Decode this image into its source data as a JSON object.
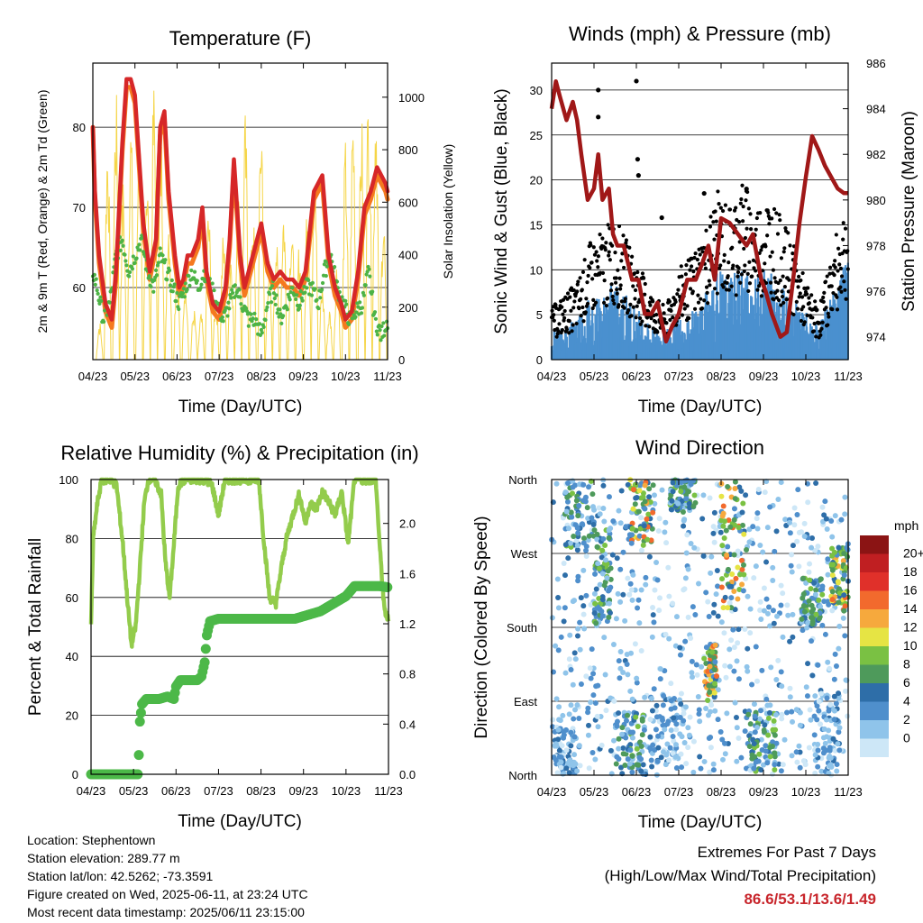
{
  "footer": {
    "location": "Location: Stephentown",
    "elevation": "Station elevation: 289.77 m",
    "latlon": "Station lat/lon: 42.5262; -73.3591",
    "created": "Figure created on Wed, 2025-06-11, at 23:24 UTC",
    "recent": "Most recent data timestamp: 2025/06/11 23:15:00"
  },
  "extremes": {
    "title1": "Extremes For Past 7 Days",
    "title2": "(High/Low/Max Wind/Total Precipitation)",
    "values": "86.6/53.1/13.6/1.49"
  },
  "colors": {
    "temp2m": "#d62728",
    "temp9m": "#f5791f",
    "dewpoint": "#4db346",
    "solar": "#f5d547",
    "gust": "#000000",
    "wind": "#4a90cf",
    "pressure": "#a01818",
    "rh": "#93cc4c",
    "precip": "#4cb848"
  },
  "chart_data": [
    {
      "type": "line",
      "title": "Temperature (F)",
      "xlabel": "Time (Day/UTC)",
      "ylabel": "2m & 9m T (Red, Orange) & 2m Td (Green)",
      "y2label": "Solar Insolation (Yellow)",
      "x_ticks": [
        "04/23",
        "05/23",
        "06/23",
        "07/23",
        "08/23",
        "09/23",
        "10/23",
        "11/23"
      ],
      "xlim": [
        0,
        7
      ],
      "ylim": [
        51,
        88
      ],
      "y_ticks": [
        60,
        70,
        80
      ],
      "y2lim": [
        0,
        1130
      ],
      "y2_ticks": [
        0,
        200,
        400,
        600,
        800,
        1000
      ],
      "grid": true,
      "series": [
        {
          "key": "temp2m",
          "x": [
            0,
            0.05,
            0.15,
            0.3,
            0.45,
            0.55,
            0.7,
            0.8,
            0.9,
            1,
            1.1,
            1.2,
            1.35,
            1.5,
            1.6,
            1.7,
            1.8,
            1.95,
            2.05,
            2.15,
            2.25,
            2.35,
            2.5,
            2.6,
            2.7,
            2.85,
            3,
            3.15,
            3.25,
            3.35,
            3.5,
            3.6,
            3.75,
            3.9,
            4.0,
            4.15,
            4.3,
            4.45,
            4.6,
            4.75,
            4.9,
            5.05,
            5.25,
            5.45,
            5.6,
            5.75,
            5.9,
            6.0,
            6.15,
            6.3,
            6.45,
            6.6,
            6.75,
            6.85,
            6.95,
            7
          ],
          "y": [
            80,
            72,
            64,
            58,
            56,
            62,
            78,
            86,
            86,
            84,
            76,
            68,
            62,
            66,
            80,
            82,
            72,
            64,
            60,
            61,
            64,
            64,
            66,
            70,
            62,
            58,
            57,
            60,
            66,
            76,
            64,
            60,
            63,
            66,
            68,
            63,
            61,
            62,
            61,
            61,
            60,
            62,
            72,
            74,
            64,
            60,
            58,
            56,
            57,
            62,
            70,
            72,
            75,
            74,
            73,
            72
          ]
        },
        {
          "key": "temp9m",
          "x": [
            0,
            0.05,
            0.15,
            0.3,
            0.45,
            0.55,
            0.7,
            0.8,
            0.9,
            1,
            1.1,
            1.2,
            1.35,
            1.5,
            1.6,
            1.7,
            1.8,
            1.95,
            2.05,
            2.15,
            2.25,
            2.35,
            2.5,
            2.6,
            2.7,
            2.85,
            3,
            3.15,
            3.25,
            3.35,
            3.5,
            3.6,
            3.75,
            3.9,
            4.0,
            4.15,
            4.3,
            4.45,
            4.6,
            4.75,
            4.9,
            5.05,
            5.25,
            5.45,
            5.6,
            5.75,
            5.9,
            6.0,
            6.15,
            6.3,
            6.45,
            6.6,
            6.75,
            6.85,
            6.95,
            7
          ],
          "y": [
            80,
            71,
            63,
            57,
            55,
            61,
            77,
            85,
            85,
            83,
            75,
            67,
            61,
            65,
            79,
            81,
            71,
            63,
            59,
            60,
            63,
            63,
            65,
            69,
            61,
            57,
            56,
            59,
            65,
            75,
            63,
            59,
            62,
            65,
            67,
            62,
            60,
            61,
            60,
            60,
            59,
            61,
            71,
            73,
            63,
            59,
            57,
            55,
            56,
            61,
            69,
            71,
            74,
            73,
            72,
            71
          ]
        },
        {
          "key": "dewpoint",
          "x": [
            0,
            0.1,
            0.25,
            0.4,
            0.55,
            0.7,
            0.85,
            1,
            1.15,
            1.3,
            1.45,
            1.6,
            1.75,
            1.9,
            2.05,
            2.2,
            2.35,
            2.5,
            2.65,
            2.8,
            2.95,
            3.1,
            3.25,
            3.4,
            3.55,
            3.7,
            3.85,
            4.0,
            4.15,
            4.3,
            4.45,
            4.6,
            4.75,
            4.9,
            5.05,
            5.2,
            5.35,
            5.5,
            5.65,
            5.8,
            5.95,
            6.1,
            6.25,
            6.4,
            6.55,
            6.7,
            6.85,
            7
          ],
          "y": [
            62,
            60,
            56,
            58,
            64,
            66,
            62,
            64,
            66,
            62,
            60,
            64,
            62,
            60,
            58,
            60,
            62,
            60,
            62,
            60,
            58,
            56,
            58,
            60,
            58,
            56,
            56,
            54,
            58,
            60,
            56,
            58,
            60,
            58,
            60,
            60,
            58,
            62,
            64,
            60,
            58,
            56,
            57,
            58,
            62,
            56,
            54,
            56
          ]
        }
      ],
      "solar_days_x": [
        0.16,
        0.35,
        0.55,
        0.72,
        0.9,
        1.1,
        1.28,
        1.45,
        1.62,
        1.8,
        2.0,
        2.2,
        2.4,
        2.57,
        2.75,
        2.92,
        3.1,
        3.28,
        3.45,
        3.62,
        3.8,
        4.0,
        4.18,
        4.35,
        4.53,
        4.72,
        4.9,
        5.1,
        5.27,
        5.45,
        5.62,
        5.8,
        6.0,
        6.18,
        6.38,
        6.55,
        6.72,
        6.9
      ],
      "solar_days_peak": [
        150,
        900,
        1050,
        700,
        950,
        1000,
        800,
        1080,
        900,
        600,
        400,
        350,
        200,
        180,
        600,
        250,
        500,
        450,
        700,
        950,
        600,
        1000,
        400,
        500,
        620,
        580,
        450,
        700,
        900,
        300,
        200,
        400,
        850,
        1000,
        950,
        1100,
        1080,
        600
      ]
    },
    {
      "type": "scatter",
      "title": "Winds (mph) & Pressure (mb)",
      "xlabel": "Time (Day/UTC)",
      "ylabel": "Sonic Wind & Gust (Blue, Black)",
      "y2label": "Station Pressure (Maroon)",
      "x_ticks": [
        "04/23",
        "05/23",
        "06/23",
        "07/23",
        "08/23",
        "09/23",
        "10/23",
        "11/23"
      ],
      "xlim": [
        0,
        7
      ],
      "ylim": [
        0,
        33
      ],
      "y_ticks": [
        0,
        5,
        10,
        15,
        20,
        25,
        30
      ],
      "y2lim": [
        973,
        986
      ],
      "y2_ticks": [
        974,
        976,
        978,
        980,
        982,
        984,
        986
      ],
      "grid": true,
      "wind_envelope_x": [
        0,
        0.3,
        0.6,
        0.9,
        1.2,
        1.5,
        1.8,
        2.1,
        2.4,
        2.7,
        3.0,
        3.3,
        3.6,
        3.9,
        4.2,
        4.5,
        4.8,
        5.1,
        5.4,
        5.7,
        6.0,
        6.3,
        6.6,
        6.9,
        7
      ],
      "wind_envelope_mean": [
        2,
        2,
        3,
        4,
        4,
        5,
        4,
        3,
        2,
        2,
        3,
        3,
        4,
        6,
        5,
        6,
        5,
        6,
        5,
        4,
        3,
        2,
        4,
        6,
        6
      ],
      "gust_envelope_mean": [
        4,
        5,
        6,
        9,
        10,
        11,
        9,
        7,
        5,
        4,
        7,
        8,
        10,
        13,
        12,
        14,
        12,
        13,
        11,
        9,
        6,
        4,
        8,
        12,
        12
      ],
      "gust_outliers": [
        {
          "x": 1.1,
          "y": 30
        },
        {
          "x": 1.1,
          "y": 27
        },
        {
          "x": 2.0,
          "y": 31
        },
        {
          "x": 2.03,
          "y": 22.3
        },
        {
          "x": 2.05,
          "y": 20.5
        },
        {
          "x": 2.6,
          "y": 15.8
        },
        {
          "x": 3.6,
          "y": 18.5
        },
        {
          "x": 4.6,
          "y": 19
        }
      ],
      "pressure": {
        "x": [
          0,
          0.1,
          0.2,
          0.35,
          0.5,
          0.6,
          0.7,
          0.85,
          1.0,
          1.1,
          1.2,
          1.35,
          1.45,
          1.55,
          1.7,
          1.9,
          2.05,
          2.2,
          2.35,
          2.5,
          2.7,
          2.85,
          3.0,
          3.2,
          3.4,
          3.55,
          3.7,
          3.85,
          4.0,
          4.2,
          4.4,
          4.6,
          4.75,
          4.85,
          4.95,
          5.05,
          5.2,
          5.4,
          5.55,
          5.7,
          5.85,
          6.0,
          6.15,
          6.3,
          6.45,
          6.6,
          6.75,
          6.9,
          7
        ],
        "y": [
          984,
          985.2,
          984.5,
          983.5,
          984.3,
          983.5,
          982,
          980,
          980.5,
          982,
          980,
          980.5,
          978.5,
          978,
          978,
          976.5,
          976.5,
          975,
          975,
          975.5,
          973.8,
          974.5,
          975,
          976.5,
          976.5,
          977.2,
          978,
          976.5,
          979.2,
          979,
          978.5,
          978,
          978.5,
          977.5,
          976.5,
          976,
          975,
          974,
          974.2,
          976.5,
          979,
          981,
          982.8,
          982.2,
          981.5,
          981,
          980.5,
          980.3,
          980.3
        ]
      }
    },
    {
      "type": "line",
      "title": "Relative Humidity (%) & Precipitation (in)",
      "xlabel": "Time (Day/UTC)",
      "ylabel": "Percent & Total Rainfall",
      "x_ticks": [
        "04/23",
        "05/23",
        "06/23",
        "07/23",
        "08/23",
        "09/23",
        "10/23",
        "11/23"
      ],
      "xlim": [
        0,
        7
      ],
      "ylim": [
        0,
        100
      ],
      "y_ticks": [
        0,
        20,
        40,
        60,
        80,
        100
      ],
      "y2lim": [
        0,
        2.35
      ],
      "y2_ticks": [
        0.0,
        0.4,
        0.8,
        1.2,
        1.6,
        2.0
      ],
      "grid": true,
      "series": [
        {
          "key": "rh",
          "x": [
            0,
            0.05,
            0.15,
            0.25,
            0.35,
            0.45,
            0.6,
            0.75,
            0.85,
            0.95,
            1.05,
            1.15,
            1.25,
            1.35,
            1.5,
            1.65,
            1.75,
            1.85,
            1.95,
            2.05,
            2.2,
            2.35,
            2.5,
            2.6,
            2.7,
            2.85,
            3.0,
            3.15,
            3.25,
            3.35,
            3.5,
            3.65,
            3.8,
            3.95,
            4.05,
            4.2,
            4.35,
            4.5,
            4.6,
            4.75,
            4.9,
            5.05,
            5.15,
            5.3,
            5.45,
            5.6,
            5.75,
            5.9,
            6.05,
            6.2,
            6.35,
            6.5,
            6.6,
            6.7,
            6.8,
            6.9,
            7
          ],
          "y": [
            50,
            80,
            92,
            100,
            100,
            100,
            98,
            78,
            60,
            44,
            50,
            70,
            92,
            100,
            100,
            95,
            72,
            60,
            78,
            98,
            100,
            100,
            100,
            100,
            100,
            98,
            88,
            100,
            100,
            100,
            100,
            100,
            100,
            100,
            82,
            60,
            58,
            72,
            80,
            88,
            95,
            85,
            92,
            90,
            96,
            92,
            88,
            96,
            78,
            100,
            100,
            100,
            100,
            100,
            76,
            56,
            52
          ]
        },
        {
          "key": "precip",
          "x": [
            0,
            0.5,
            1.1,
            1.12,
            1.15,
            1.2,
            1.25,
            1.3,
            1.6,
            1.8,
            1.95,
            2.0,
            2.1,
            2.5,
            2.6,
            2.68,
            2.72,
            2.8,
            3.0,
            3.5,
            4.2,
            4.5,
            4.8,
            5.0,
            5.2,
            5.4,
            5.6,
            5.8,
            6.0,
            6.2,
            6.5,
            6.8,
            7
          ],
          "y": [
            0,
            0,
            0,
            0.1,
            0.42,
            0.56,
            0.58,
            0.6,
            0.6,
            0.62,
            0.6,
            0.7,
            0.75,
            0.75,
            0.78,
            0.9,
            1.1,
            1.22,
            1.24,
            1.24,
            1.24,
            1.24,
            1.24,
            1.26,
            1.28,
            1.3,
            1.34,
            1.38,
            1.42,
            1.5,
            1.5,
            1.5,
            1.49
          ]
        }
      ]
    },
    {
      "type": "scatter",
      "title": "Wind Direction",
      "xlabel": "Time (Day/UTC)",
      "ylabel": "Direction (Colored By Speed)",
      "x_ticks": [
        "04/23",
        "05/23",
        "06/23",
        "07/23",
        "08/23",
        "09/23",
        "10/23",
        "11/23"
      ],
      "xlim": [
        0,
        7
      ],
      "y_ticks": [
        "North",
        "East",
        "South",
        "West",
        "North"
      ],
      "ylim": [
        0,
        360
      ],
      "grid": true,
      "legend_title": "mph",
      "legend_labels": [
        "0",
        "2",
        "4",
        "6",
        "8",
        "10",
        "12",
        "14",
        "16",
        "18",
        "20+"
      ],
      "legend_colors": [
        "#cde7f7",
        "#8fc4ea",
        "#4f8fcc",
        "#2e6ea8",
        "#4e9a5b",
        "#7ac143",
        "#e6e444",
        "#f6a93d",
        "#f26a2d",
        "#e0302a",
        "#c01f22",
        "#8b1414"
      ],
      "clusters": [
        {
          "x": [
            0.05,
            0.6
          ],
          "y": [
            0,
            60
          ],
          "speed": "low"
        },
        {
          "x": [
            0.3,
            1.0
          ],
          "y": [
            270,
            360
          ],
          "speed": "mid"
        },
        {
          "x": [
            1.0,
            1.4
          ],
          "y": [
            180,
            300
          ],
          "speed": "mid"
        },
        {
          "x": [
            1.5,
            2.2
          ],
          "y": [
            0,
            80
          ],
          "speed": "mid"
        },
        {
          "x": [
            1.8,
            2.4
          ],
          "y": [
            280,
            360
          ],
          "speed": "high"
        },
        {
          "x": [
            2.3,
            3.2
          ],
          "y": [
            10,
            100
          ],
          "speed": "low"
        },
        {
          "x": [
            2.8,
            3.4
          ],
          "y": [
            320,
            360
          ],
          "speed": "mid"
        },
        {
          "x": [
            3.6,
            3.9
          ],
          "y": [
            90,
            160
          ],
          "speed": "high"
        },
        {
          "x": [
            4.0,
            4.6
          ],
          "y": [
            200,
            360
          ],
          "speed": "high"
        },
        {
          "x": [
            4.6,
            5.3
          ],
          "y": [
            0,
            80
          ],
          "speed": "mid"
        },
        {
          "x": [
            5.9,
            6.4
          ],
          "y": [
            180,
            240
          ],
          "speed": "mid"
        },
        {
          "x": [
            6.6,
            7.0
          ],
          "y": [
            200,
            280
          ],
          "speed": "high"
        },
        {
          "x": [
            6.2,
            6.8
          ],
          "y": [
            0,
            100
          ],
          "speed": "low"
        }
      ]
    }
  ]
}
